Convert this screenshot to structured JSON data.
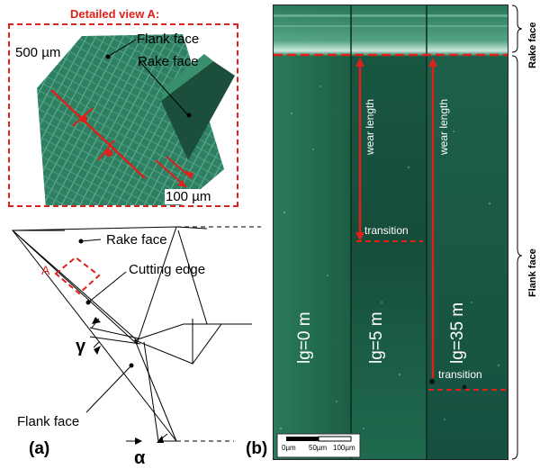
{
  "panel_a": {
    "detail_title": "Detailed view A:",
    "scale_500": "500 µm",
    "flank_face_top": "Flank face",
    "rake_face_top": "Rake face",
    "scale_100": "100 µm",
    "rake_face_label": "Rake face",
    "cutting_edge_label": "Cutting edge",
    "detail_marker": "A",
    "gamma_symbol": "γ",
    "flank_face_label": "Flank face",
    "alpha_symbol": "α",
    "panel_label": "(a)"
  },
  "panel_b": {
    "panel_label": "(b)",
    "wear_length_1": "wear length",
    "wear_length_2": "wear length",
    "transition_1": "transition",
    "transition_2": "transition",
    "strip_labels": [
      "lg=0 m",
      "lg=5 m",
      "lg=35 m"
    ],
    "scale_ticks": [
      "0µm",
      "50µm",
      "100µm"
    ],
    "side_rake": "Rake face",
    "side_flank": "Flank face"
  },
  "colors": {
    "accent_red": "#e0201a",
    "micrograph_green": "#1f6a4e"
  }
}
